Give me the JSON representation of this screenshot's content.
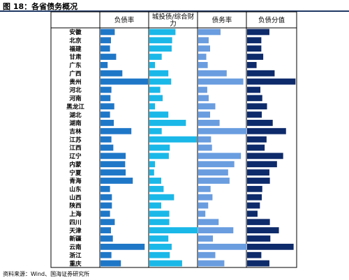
{
  "figure": {
    "title": "图 18：各省债务概况",
    "source": "资料来源：Wind、国海证券研究所"
  },
  "colors": {
    "debt_ratio": "#1f77c8",
    "chengtou_ratio": "#1ab8e8",
    "debt_burden": "#6a9de0",
    "score": "#0d2a6b",
    "border": "#000000"
  },
  "chart_data": {
    "type": "bar",
    "orientation": "horizontal",
    "categories": [
      "安徽",
      "北京",
      "福建",
      "甘肃",
      "广东",
      "广西",
      "贵州",
      "河北",
      "河南",
      "黑龙江",
      "湖北",
      "湖南",
      "吉林",
      "江苏",
      "江西",
      "辽宁",
      "内蒙",
      "宁夏",
      "青海",
      "山东",
      "山西",
      "陕西",
      "上海",
      "四川",
      "天津",
      "新疆",
      "云南",
      "浙江",
      "重庆"
    ],
    "series": [
      {
        "name": "负债率",
        "values": [
          0.3,
          0.22,
          0.2,
          0.33,
          0.15,
          0.46,
          1.0,
          0.23,
          0.21,
          0.29,
          0.2,
          0.28,
          0.65,
          0.23,
          0.27,
          0.53,
          0.52,
          0.53,
          0.68,
          0.2,
          0.24,
          0.24,
          0.2,
          0.3,
          0.22,
          0.26,
          0.93,
          0.23,
          0.43
        ]
      },
      {
        "name": "城投债/综合财力",
        "values": [
          0.55,
          0.48,
          0.47,
          0.26,
          0.12,
          0.4,
          0.46,
          0.23,
          0.28,
          0.12,
          0.4,
          0.77,
          0.26,
          1.0,
          0.43,
          0.41,
          0.12,
          0.1,
          0.25,
          0.3,
          0.52,
          0.25,
          0.42,
          0.42,
          1.02,
          0.4,
          0.47,
          0.43,
          0.69
        ]
      },
      {
        "name": "债务率",
        "values": [
          0.47,
          0.22,
          0.25,
          0.17,
          0.2,
          0.6,
          0.95,
          0.19,
          0.22,
          0.36,
          0.25,
          0.45,
          1.02,
          0.27,
          0.29,
          0.9,
          0.76,
          0.63,
          0.66,
          0.26,
          0.3,
          0.21,
          0.15,
          0.43,
          0.74,
          0.31,
          1.02,
          0.36,
          0.55
        ]
      },
      {
        "name": "负债分值",
        "values": [
          0.47,
          0.3,
          0.3,
          0.34,
          0.2,
          0.58,
          1.02,
          0.28,
          0.32,
          0.42,
          0.31,
          0.54,
          0.82,
          0.41,
          0.37,
          0.76,
          0.63,
          0.47,
          0.48,
          0.32,
          0.31,
          0.27,
          0.22,
          0.48,
          0.67,
          0.49,
          0.98,
          0.3,
          0.47
        ]
      }
    ],
    "xlim": [
      0,
      1
    ],
    "grid": false,
    "legend": "none"
  }
}
